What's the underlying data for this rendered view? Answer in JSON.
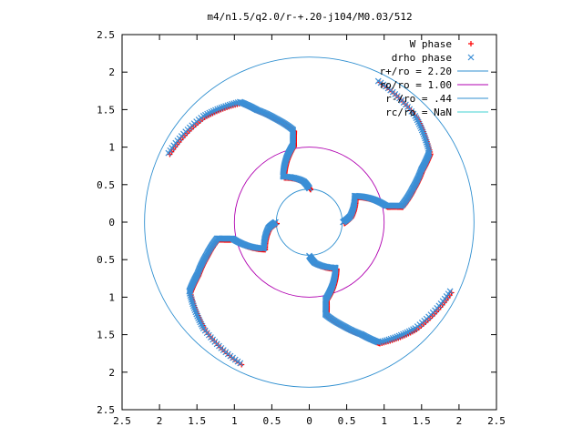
{
  "chart_data": {
    "type": "scatter",
    "title": "m4/n1.5/q2.0/r-+.20-j104/M0.03/512",
    "xlim": [
      -2.5,
      2.5
    ],
    "ylim": [
      -2.5,
      2.5
    ],
    "x_ticks": [
      -2.5,
      -2,
      -1.5,
      -1,
      -0.5,
      0,
      0.5,
      1,
      1.5,
      2,
      2.5
    ],
    "y_ticks": [
      -2.5,
      -2,
      -1.5,
      -1,
      -0.5,
      0,
      0.5,
      1,
      1.5,
      2,
      2.5
    ],
    "x_tick_labels": [
      "2.5",
      "2",
      "1.5",
      "1",
      "0.5",
      "0",
      "0.5",
      "1",
      "1.5",
      "2",
      "2.5"
    ],
    "y_tick_labels": [
      "2.5",
      "2",
      "1.5",
      "1",
      "0.5",
      "0",
      "0.5",
      "1",
      "1.5",
      "2",
      "2.5"
    ],
    "grid": false,
    "legend_position": "top-right",
    "series": [
      {
        "name": "W phase",
        "marker": "+",
        "color": "#ff0000",
        "arms": 4,
        "spiral_points_polar": [
          {
            "r": 0.45,
            "theta_deg": 0
          },
          {
            "r": 0.55,
            "theta_deg": 8
          },
          {
            "r": 0.7,
            "theta_deg": 30
          },
          {
            "r": 0.9,
            "theta_deg": 20
          },
          {
            "r": 1.05,
            "theta_deg": 12
          },
          {
            "r": 1.25,
            "theta_deg": 10
          },
          {
            "r": 1.45,
            "theta_deg": 18
          },
          {
            "r": 1.65,
            "theta_deg": 25
          },
          {
            "r": 1.85,
            "theta_deg": 30
          },
          {
            "r": 2.0,
            "theta_deg": 45
          },
          {
            "r": 2.1,
            "theta_deg": 65
          }
        ]
      },
      {
        "name": "drho phase",
        "marker": "x",
        "color": "#3b8fd6",
        "arms": 4,
        "spiral_points_polar": [
          {
            "r": 0.45,
            "theta_deg": 0
          },
          {
            "r": 0.55,
            "theta_deg": 8
          },
          {
            "r": 0.7,
            "theta_deg": 30
          },
          {
            "r": 0.9,
            "theta_deg": 20
          },
          {
            "r": 1.05,
            "theta_deg": 12
          },
          {
            "r": 1.25,
            "theta_deg": 10
          },
          {
            "r": 1.45,
            "theta_deg": 18
          },
          {
            "r": 1.65,
            "theta_deg": 25
          },
          {
            "r": 1.85,
            "theta_deg": 30
          },
          {
            "r": 2.0,
            "theta_deg": 45
          },
          {
            "r": 2.1,
            "theta_deg": 65
          }
        ]
      },
      {
        "name": "r+/ro = 2.20",
        "type": "circle",
        "radius": 2.2,
        "color": "#2f8fd0"
      },
      {
        "name": "ro/ro = 1.00",
        "type": "circle",
        "radius": 1.0,
        "color": "#b000b0"
      },
      {
        "name": "r-/ro = .44",
        "type": "circle",
        "radius": 0.44,
        "color": "#2f8fd0"
      },
      {
        "name": "rc/ro = NaN",
        "type": "circle",
        "radius": null,
        "color": "#40d0d0"
      }
    ]
  }
}
